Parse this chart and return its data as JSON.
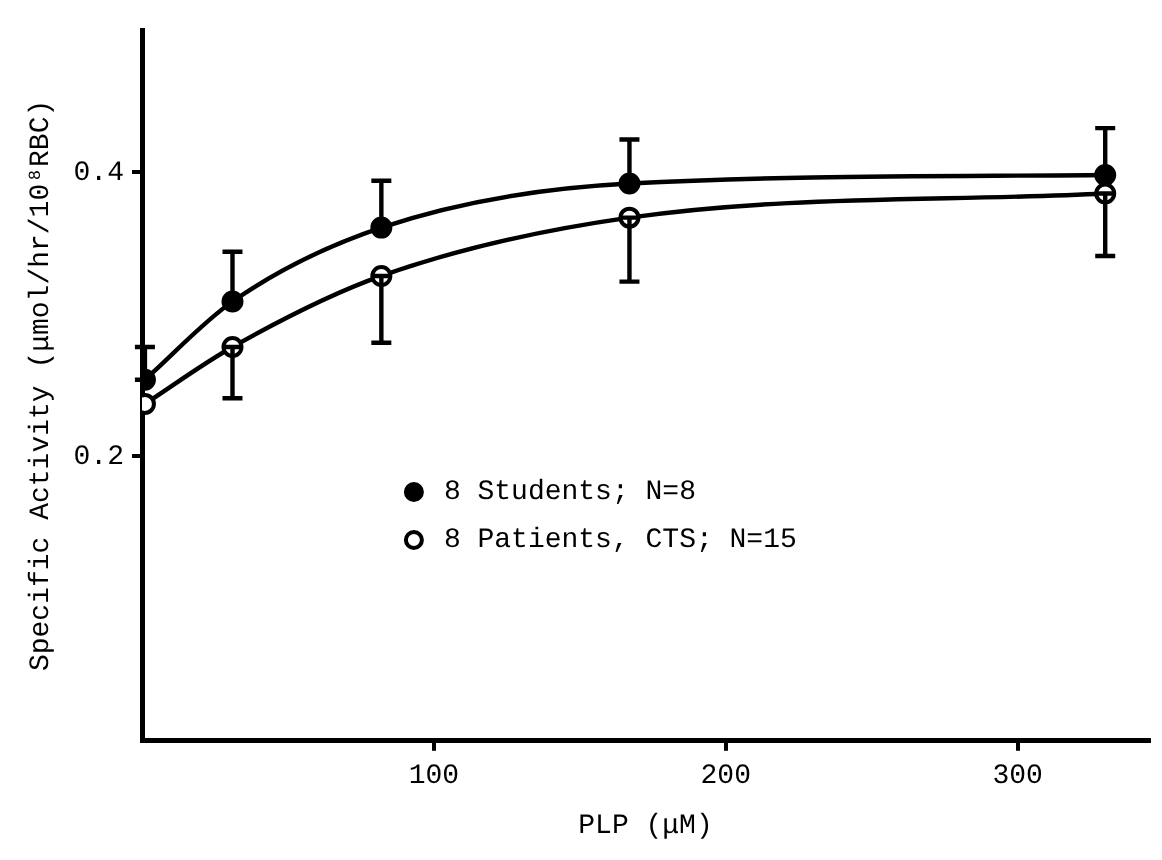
{
  "chart_data": {
    "type": "line",
    "xlabel": "PLP (μM)",
    "ylabel": "Specific Activity (μmol/hr/10⁸RBC)",
    "xlim": [
      0,
      345
    ],
    "ylim": [
      0,
      0.5
    ],
    "xticks": [
      100,
      200,
      300
    ],
    "yticks": [
      0.2,
      0.4
    ],
    "series": [
      {
        "name": "8 Students; N=8",
        "color": "#000000",
        "x": [
          1,
          31,
          82,
          167,
          330
        ],
        "values": [
          0.254,
          0.309,
          0.361,
          0.392,
          0.398
        ],
        "errors": [
          [
            0.254,
            0.277
          ],
          [
            0.309,
            0.344
          ],
          [
            0.361,
            0.394
          ],
          [
            0.392,
            0.423
          ],
          [
            0.398,
            0.431
          ]
        ]
      },
      {
        "name": "8 Patients, CTS; N=15",
        "color": "#000000",
        "x": [
          1,
          31,
          82,
          167,
          330
        ],
        "values": [
          0.237,
          0.277,
          0.327,
          0.368,
          0.385
        ],
        "errors": [
          null,
          [
            0.241,
            0.277
          ],
          [
            0.28,
            0.327
          ],
          [
            0.323,
            0.368
          ],
          [
            0.341,
            0.385
          ]
        ]
      }
    ],
    "marker": "circle",
    "line_style": "solid",
    "grid": false,
    "legend": "center"
  }
}
